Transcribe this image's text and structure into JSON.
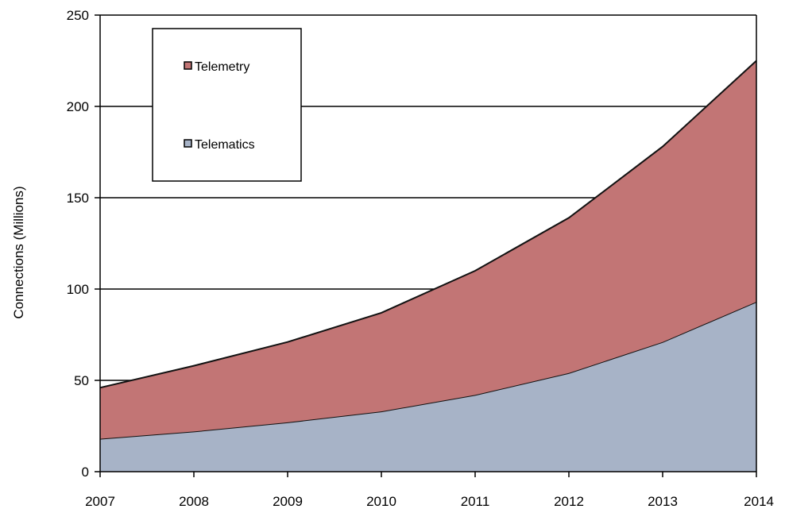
{
  "chart_data": {
    "type": "area",
    "stacked": true,
    "x": [
      "2007",
      "2008",
      "2009",
      "2010",
      "2011",
      "2012",
      "2013",
      "2014"
    ],
    "series": [
      {
        "name": "Telematics",
        "values": [
          18,
          22,
          27,
          33,
          42,
          54,
          71,
          93
        ],
        "color": "#a7b3c7"
      },
      {
        "name": "Telemetry",
        "values": [
          28,
          36,
          44,
          54,
          68,
          85,
          107,
          132
        ],
        "color": "#c27575"
      }
    ],
    "xlabel": "",
    "ylabel": "Connections (Millions)",
    "ylim": [
      0,
      250
    ],
    "yticks": [
      0,
      50,
      100,
      150,
      200,
      250
    ],
    "grid": "horizontal",
    "legend": {
      "placement": "top-left",
      "order": [
        "Telemetry",
        "Telematics"
      ]
    }
  }
}
